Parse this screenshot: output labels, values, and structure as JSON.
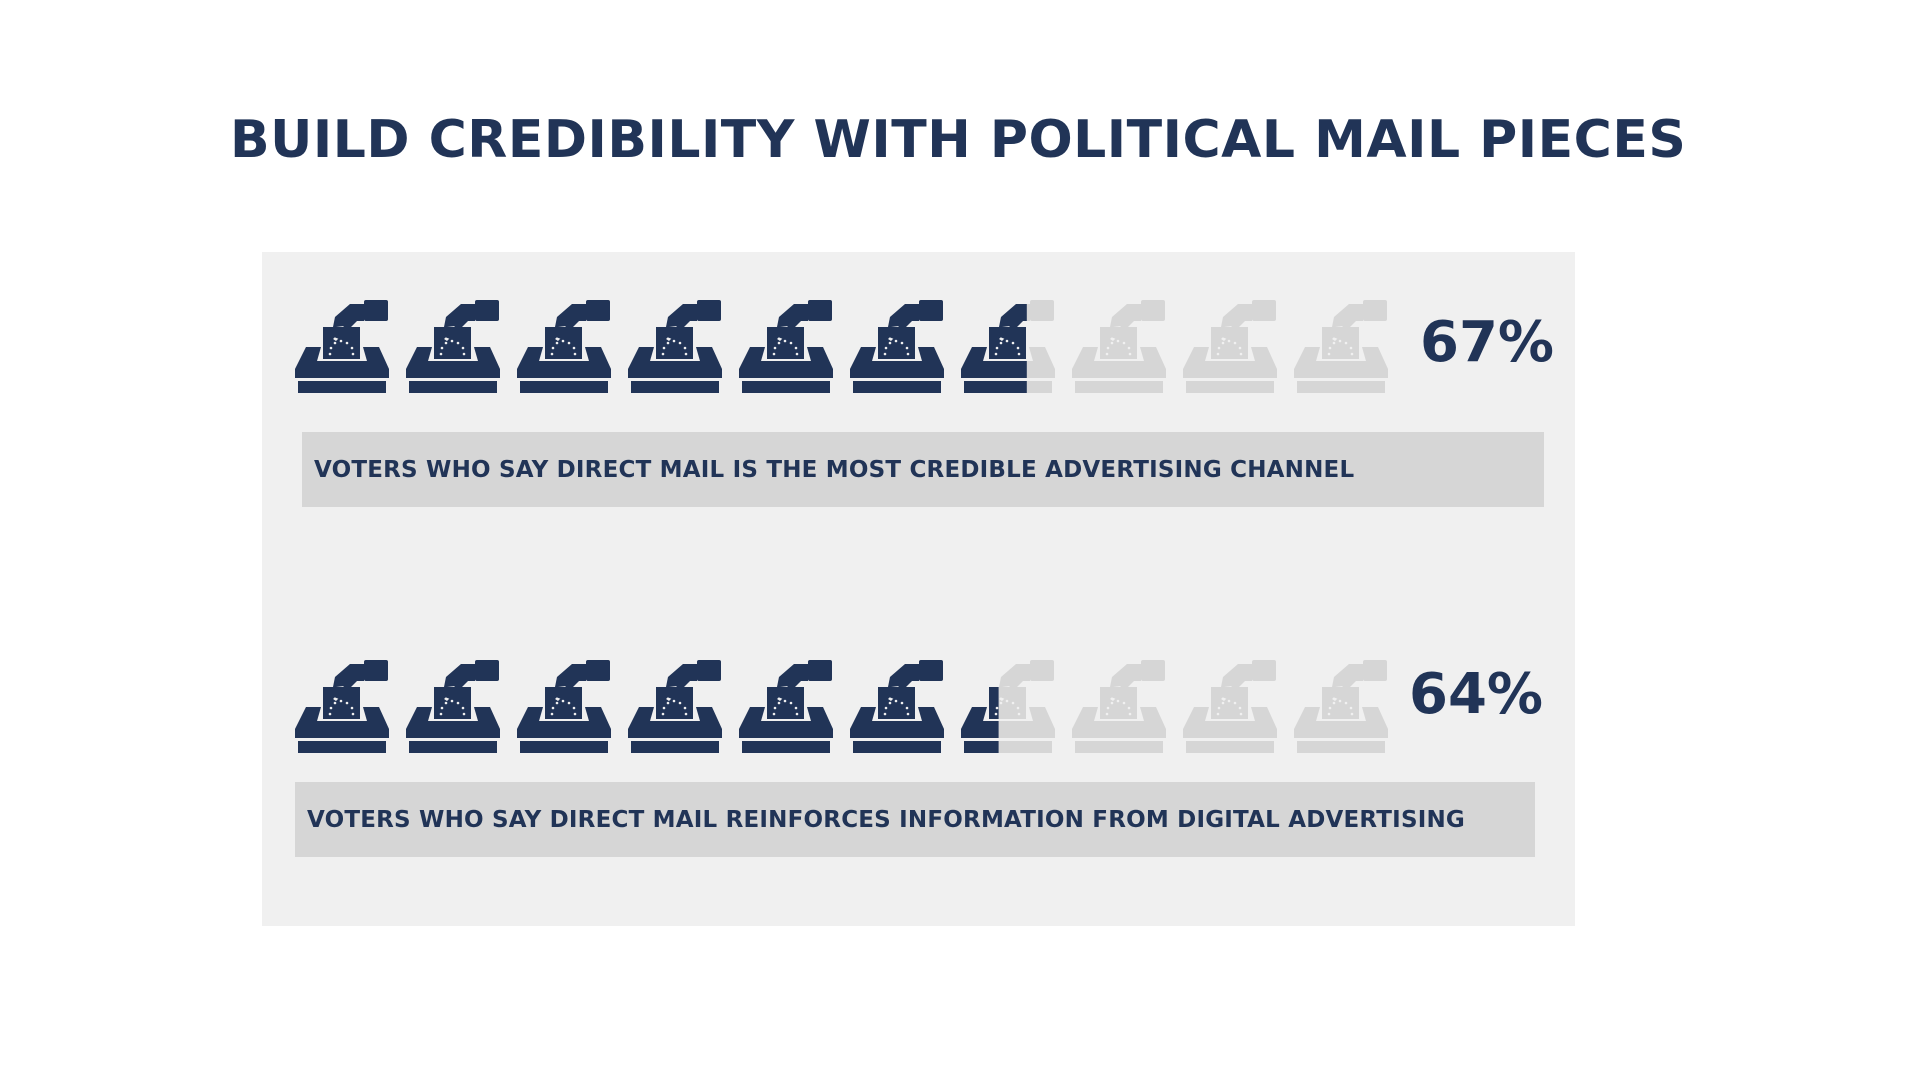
{
  "title": "BUILD CREDIBILITY WITH POLITICAL MAIL PIECES",
  "colors": {
    "filled": "#213457",
    "empty": "#d6d6d6",
    "panel": "#f0f0f0",
    "label_bg": "#d6d6d6"
  },
  "icon": "ballot-box-icon",
  "chart_data": {
    "type": "pictogram",
    "icons_per_row": 10,
    "rows": [
      {
        "value": 67,
        "value_label": "67%",
        "label": "VOTERS WHO SAY DIRECT MAIL IS THE MOST CREDIBLE ADVERTISING CHANNEL"
      },
      {
        "value": 64,
        "value_label": "64%",
        "label": "VOTERS WHO SAY DIRECT MAIL REINFORCES INFORMATION FROM DIGITAL ADVERTISING"
      }
    ]
  }
}
